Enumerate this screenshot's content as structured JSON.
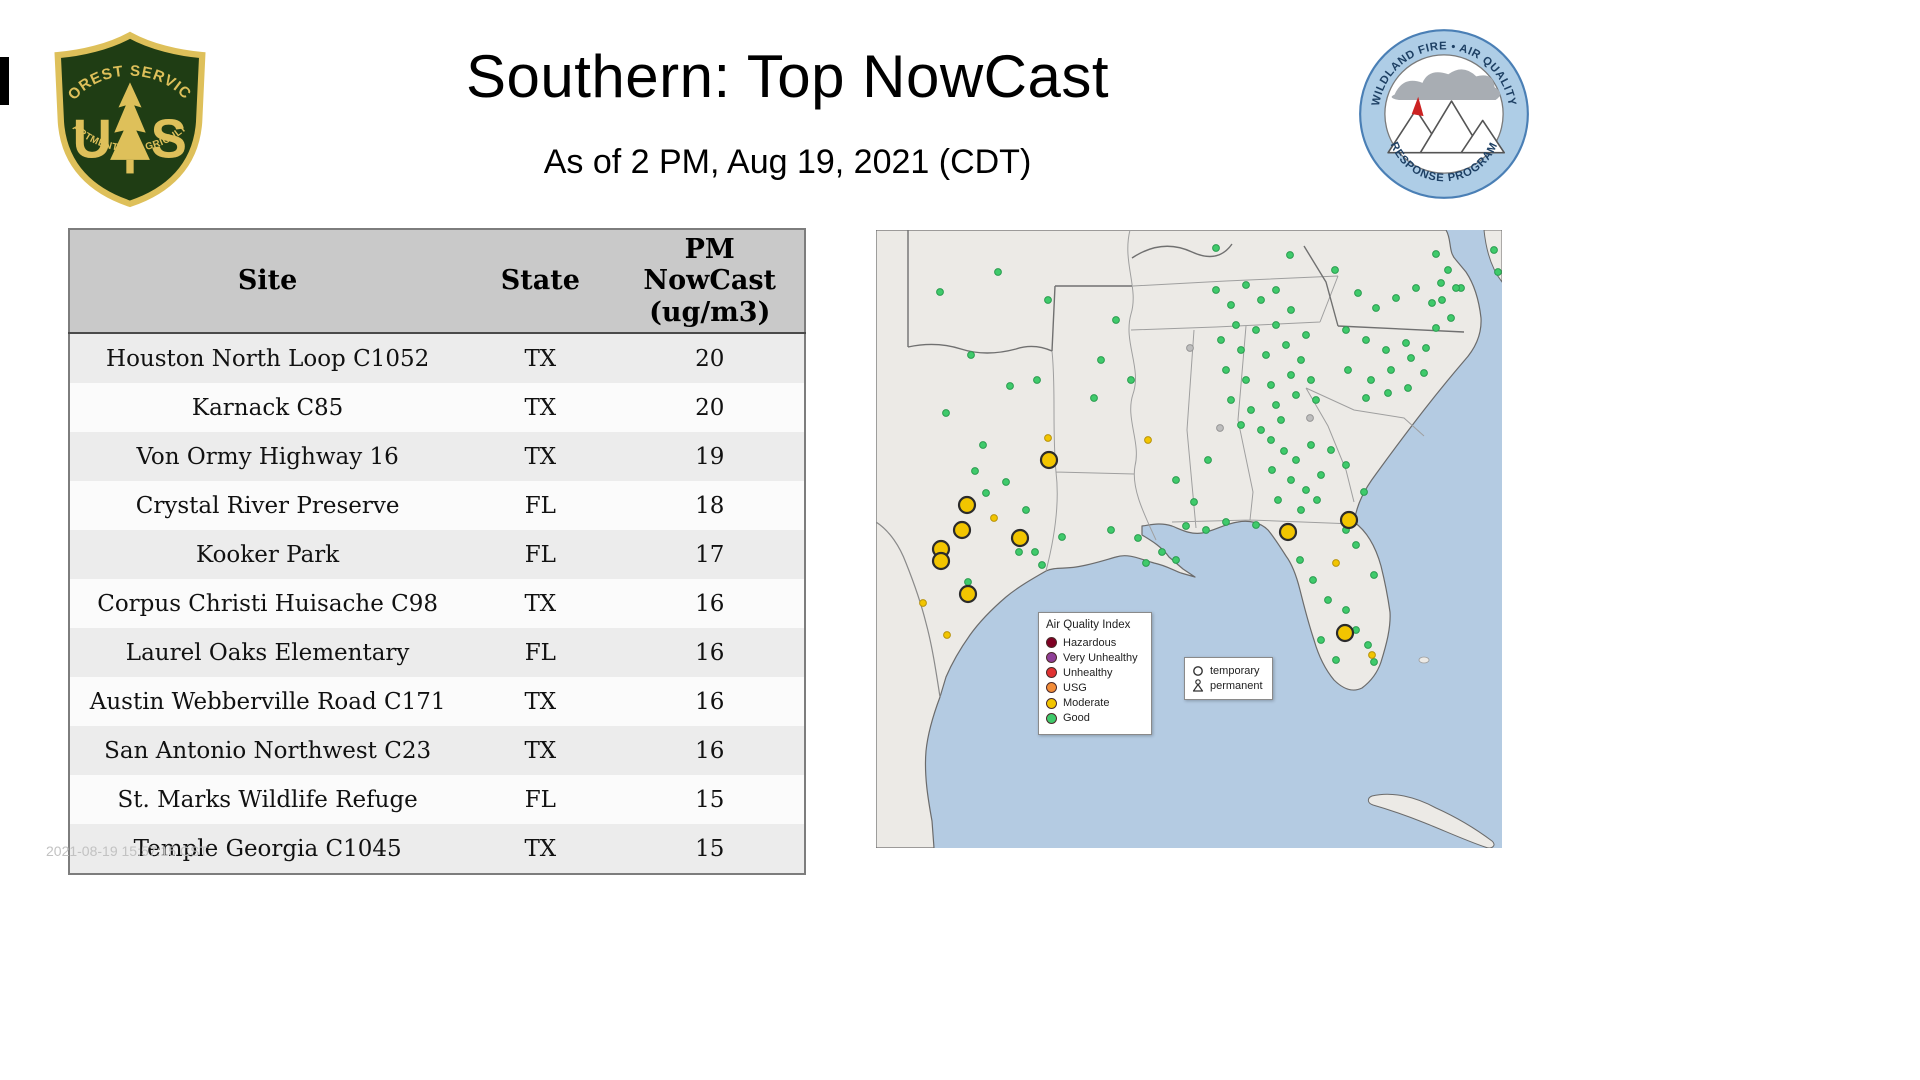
{
  "header": {
    "title": "Southern: Top NowCast",
    "subtitle": "As of  2 PM, Aug 19, 2021 (CDT)"
  },
  "logos": {
    "usfs": {
      "arc_top": "FOREST SERVICE",
      "letter_left": "U",
      "letter_right": "S",
      "arc_bottom": "DEPARTMENT OF AGRICULTURE",
      "green": "#1f3d14",
      "gold": "#dec05a"
    },
    "wfaqrp": {
      "arc_top": "WILDLAND FIRE • AIR QUALITY",
      "arc_bottom": "RESPONSE PROGRAM",
      "band_blue": "#aecde6",
      "text_blue": "#1d3f63"
    }
  },
  "table": {
    "headers": [
      "Site",
      "State",
      "PM\nNowCast\n(ug/m3)"
    ],
    "rows": [
      {
        "site": "Houston North Loop C1052",
        "state": "TX",
        "value": "20"
      },
      {
        "site": "Karnack C85",
        "state": "TX",
        "value": "20"
      },
      {
        "site": "Von Ormy Highway 16",
        "state": "TX",
        "value": "19"
      },
      {
        "site": "Crystal River Preserve",
        "state": "FL",
        "value": "18"
      },
      {
        "site": "Kooker Park",
        "state": "FL",
        "value": "17"
      },
      {
        "site": "Corpus Christi Huisache C98",
        "state": "TX",
        "value": "16"
      },
      {
        "site": "Laurel Oaks Elementary",
        "state": "FL",
        "value": "16"
      },
      {
        "site": "Austin Webberville Road C171",
        "state": "TX",
        "value": "16"
      },
      {
        "site": "San Antonio Northwest C23",
        "state": "TX",
        "value": "16"
      },
      {
        "site": "St. Marks Wildlife Refuge",
        "state": "FL",
        "value": "15"
      },
      {
        "site": "Temple Georgia C1045",
        "state": "TX",
        "value": "15"
      }
    ]
  },
  "map": {
    "legend": {
      "title": "Air Quality Index",
      "items": [
        {
          "label": "Hazardous",
          "color": "#7e0023"
        },
        {
          "label": "Very Unhealthy",
          "color": "#8f3f97"
        },
        {
          "label": "Unhealthy",
          "color": "#e03131"
        },
        {
          "label": "USG",
          "color": "#f28c38"
        },
        {
          "label": "Moderate",
          "color": "#f2c500"
        },
        {
          "label": "Good",
          "color": "#3fca6b"
        }
      ]
    },
    "shape_legend": {
      "temporary": "temporary",
      "permanent": "permanent"
    },
    "colors": {
      "water": "#b4cbe2",
      "land": "#eceae6",
      "coast": "#6b6b6b",
      "state_line": "#9f9f9f",
      "region_line": "#707070",
      "good": "#3fca6b",
      "good_stroke": "#2a9c4f",
      "moderate": "#f2c500",
      "moderate_stroke": "#b8930b",
      "temp_stroke": "#2b2b2b",
      "inactive": "#bdbdbd",
      "inactive_stroke": "#969696"
    },
    "markers": {
      "temporary_moderate": [
        [
          173,
          230
        ],
        [
          91,
          275
        ],
        [
          86,
          300
        ],
        [
          65,
          319
        ],
        [
          65,
          331
        ],
        [
          144,
          308
        ],
        [
          92,
          364
        ],
        [
          412,
          302
        ],
        [
          473,
          290
        ],
        [
          469,
          403
        ]
      ],
      "moderate": [
        [
          172,
          208
        ],
        [
          118,
          288
        ],
        [
          47,
          373
        ],
        [
          71,
          405
        ],
        [
          460,
          333
        ],
        [
          496,
          425
        ],
        [
          272,
          210
        ]
      ],
      "inactive": [
        [
          344,
          198
        ],
        [
          434,
          188
        ],
        [
          314,
          118
        ]
      ],
      "good": [
        [
          64,
          62
        ],
        [
          122,
          42
        ],
        [
          172,
          70
        ],
        [
          95,
          125
        ],
        [
          134,
          156
        ],
        [
          161,
          150
        ],
        [
          70,
          183
        ],
        [
          107,
          215
        ],
        [
          99,
          241
        ],
        [
          130,
          252
        ],
        [
          110,
          263
        ],
        [
          150,
          280
        ],
        [
          186,
          307
        ],
        [
          159,
          322
        ],
        [
          166,
          335
        ],
        [
          143,
          322
        ],
        [
          92,
          352
        ],
        [
          240,
          90
        ],
        [
          225,
          130
        ],
        [
          255,
          150
        ],
        [
          218,
          168
        ],
        [
          235,
          300
        ],
        [
          262,
          308
        ],
        [
          270,
          333
        ],
        [
          286,
          322
        ],
        [
          300,
          330
        ],
        [
          300,
          250
        ],
        [
          318,
          272
        ],
        [
          310,
          296
        ],
        [
          332,
          230
        ],
        [
          340,
          18
        ],
        [
          414,
          25
        ],
        [
          459,
          40
        ],
        [
          340,
          60
        ],
        [
          355,
          75
        ],
        [
          370,
          55
        ],
        [
          385,
          70
        ],
        [
          400,
          60
        ],
        [
          415,
          80
        ],
        [
          360,
          95
        ],
        [
          380,
          100
        ],
        [
          400,
          95
        ],
        [
          345,
          110
        ],
        [
          365,
          120
        ],
        [
          390,
          125
        ],
        [
          410,
          115
        ],
        [
          430,
          105
        ],
        [
          425,
          130
        ],
        [
          350,
          140
        ],
        [
          370,
          150
        ],
        [
          395,
          155
        ],
        [
          415,
          145
        ],
        [
          435,
          150
        ],
        [
          355,
          170
        ],
        [
          375,
          180
        ],
        [
          400,
          175
        ],
        [
          420,
          165
        ],
        [
          440,
          170
        ],
        [
          365,
          195
        ],
        [
          385,
          200
        ],
        [
          405,
          190
        ],
        [
          395,
          210
        ],
        [
          408,
          221
        ],
        [
          420,
          230
        ],
        [
          435,
          215
        ],
        [
          396,
          240
        ],
        [
          415,
          250
        ],
        [
          430,
          260
        ],
        [
          445,
          245
        ],
        [
          402,
          270
        ],
        [
          425,
          280
        ],
        [
          441,
          270
        ],
        [
          455,
          220
        ],
        [
          470,
          235
        ],
        [
          488,
          262
        ],
        [
          470,
          100
        ],
        [
          490,
          110
        ],
        [
          510,
          120
        ],
        [
          530,
          113
        ],
        [
          472,
          140
        ],
        [
          495,
          150
        ],
        [
          515,
          140
        ],
        [
          535,
          128
        ],
        [
          550,
          118
        ],
        [
          490,
          168
        ],
        [
          512,
          163
        ],
        [
          532,
          158
        ],
        [
          548,
          143
        ],
        [
          560,
          98
        ],
        [
          575,
          88
        ],
        [
          556,
          73
        ],
        [
          540,
          58
        ],
        [
          520,
          68
        ],
        [
          500,
          78
        ],
        [
          482,
          63
        ],
        [
          565,
          53
        ],
        [
          585,
          58
        ],
        [
          560,
          24
        ],
        [
          572,
          40
        ],
        [
          580,
          58
        ],
        [
          566,
          70
        ],
        [
          618,
          20
        ],
        [
          622,
          42
        ],
        [
          380,
          295
        ],
        [
          350,
          292
        ],
        [
          330,
          300
        ],
        [
          470,
          300
        ],
        [
          480,
          315
        ],
        [
          424,
          330
        ],
        [
          437,
          350
        ],
        [
          452,
          370
        ],
        [
          470,
          380
        ],
        [
          480,
          400
        ],
        [
          492,
          415
        ],
        [
          498,
          432
        ],
        [
          460,
          430
        ],
        [
          445,
          410
        ],
        [
          498,
          345
        ]
      ]
    }
  },
  "footer": {
    "timestamp": "2021-08-19 15:57:15 CST"
  },
  "chart_data": {
    "type": "table",
    "title": "Southern: Top NowCast",
    "subtitle": "As of 2 PM, Aug 19, 2021 (CDT)",
    "columns": [
      "Site",
      "State",
      "PM NowCast (ug/m3)"
    ],
    "rows": [
      [
        "Houston North Loop C1052",
        "TX",
        20
      ],
      [
        "Karnack C85",
        "TX",
        20
      ],
      [
        "Von Ormy Highway 16",
        "TX",
        19
      ],
      [
        "Crystal River Preserve",
        "FL",
        18
      ],
      [
        "Kooker Park",
        "FL",
        17
      ],
      [
        "Corpus Christi Huisache C98",
        "TX",
        16
      ],
      [
        "Laurel Oaks Elementary",
        "FL",
        16
      ],
      [
        "Austin Webberville Road C171",
        "TX",
        16
      ],
      [
        "San Antonio Northwest C23",
        "TX",
        16
      ],
      [
        "St. Marks Wildlife Refuge",
        "FL",
        15
      ],
      [
        "Temple Georgia C1045",
        "TX",
        15
      ]
    ]
  }
}
